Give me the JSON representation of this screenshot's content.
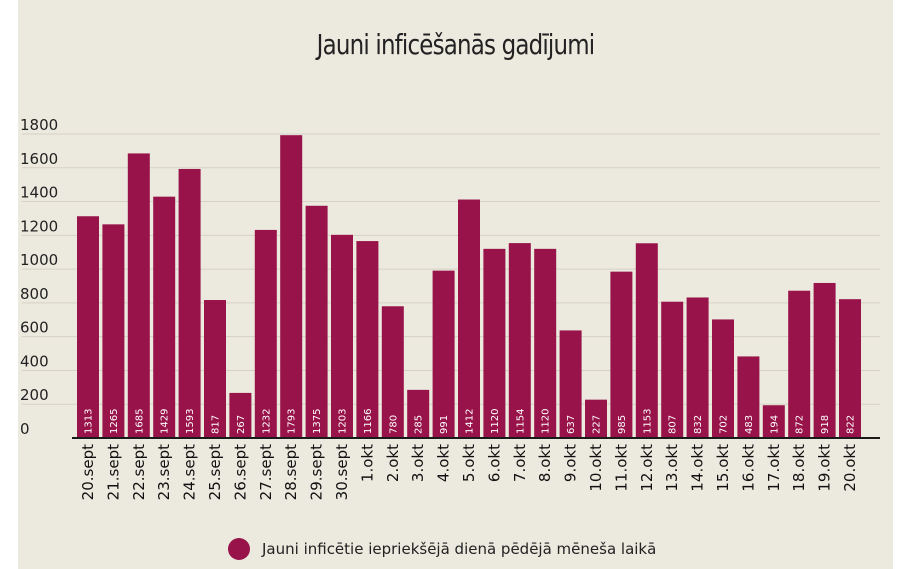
{
  "chart_data": {
    "type": "bar",
    "title": "Jauni inficēšanās gadījumi",
    "categories": [
      "20.sept",
      "21.sept",
      "22.sept",
      "23.sept",
      "24.sept",
      "25.sept",
      "26.sept",
      "27.sept",
      "28.sept",
      "29.sept",
      "30.sept",
      "1.okt",
      "2.okt",
      "3.okt",
      "4.okt",
      "5.okt",
      "6.okt",
      "7.okt",
      "8.okt",
      "9.okt",
      "10.okt",
      "11.okt",
      "12.okt",
      "13.okt",
      "14.okt",
      "15.okt",
      "16.okt",
      "17.okt",
      "18.okt",
      "19.okt",
      "20.okt"
    ],
    "series": [
      {
        "name": "Jauni inficētie iepriekšējā dienā pēdējā mēneša laikā",
        "values": [
          1313,
          1265,
          1685,
          1429,
          1593,
          817,
          267,
          1232,
          1793,
          1375,
          1203,
          1166,
          780,
          285,
          991,
          1412,
          1120,
          1154,
          1120,
          637,
          227,
          985,
          1153,
          807,
          832,
          702,
          483,
          194,
          872,
          918,
          822
        ]
      }
    ],
    "y_ticks": [
      "0",
      "200",
      "400",
      "600",
      "800",
      "1000",
      "1200",
      "1400",
      "1600",
      "1800"
    ],
    "ylim": [
      0,
      1800
    ],
    "grid": true,
    "legend_position": "bottom",
    "colors": {
      "bar": "#98134a",
      "grid": "#d6d1c4",
      "axis": "#1a1a1a",
      "background": "#ece9df"
    }
  },
  "legend": {
    "label": "Jauni inficētie iepriekšējā dienā pēdējā mēneša laikā"
  }
}
